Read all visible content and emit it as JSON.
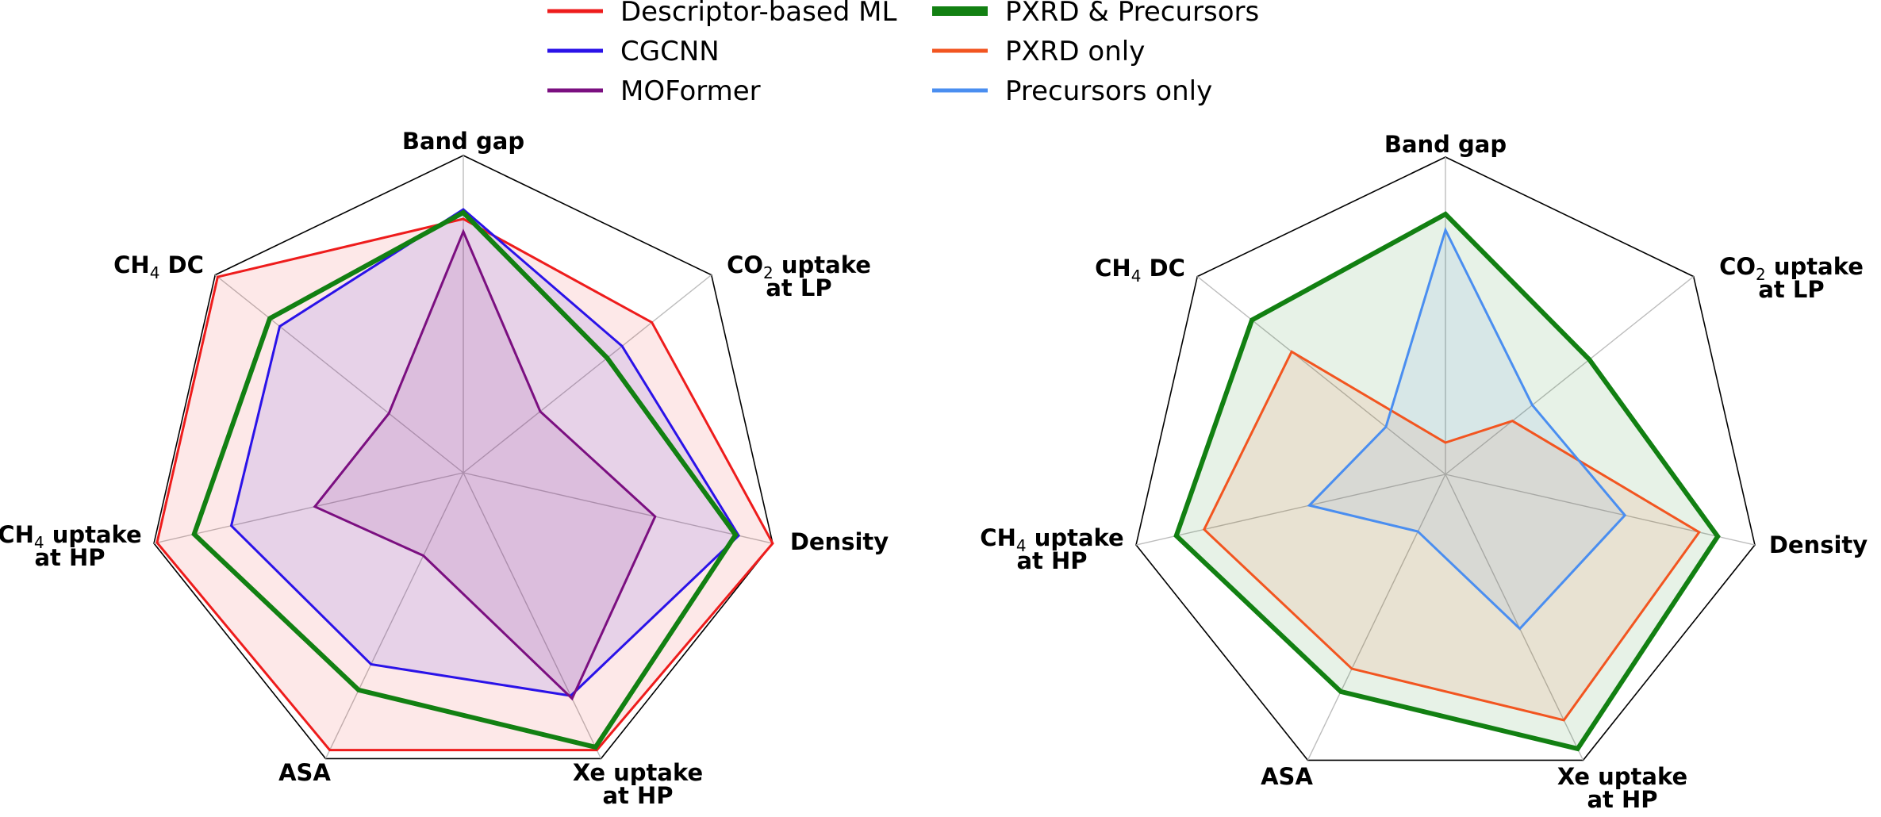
{
  "chart_data": [
    {
      "type": "radar",
      "categories": [
        {
          "main": "Band gap",
          "sub": "",
          "second": ""
        },
        {
          "main": "CO",
          "sub": "2",
          "rest": " uptake",
          "second": "at LP"
        },
        {
          "main": "Density",
          "sub": "",
          "second": ""
        },
        {
          "main": "Xe uptake",
          "sub": "",
          "second": "at HP"
        },
        {
          "main": "ASA",
          "sub": "",
          "second": ""
        },
        {
          "main": "CH",
          "sub": "4",
          "rest": " uptake",
          "second": "at HP"
        },
        {
          "main": "CH",
          "sub": "4",
          "rest": " DC",
          "second": ""
        }
      ],
      "range": [
        0,
        1
      ],
      "series": [
        {
          "name": "Descriptor-based ML",
          "color": "#ee1c1c",
          "fill": true,
          "values": [
            0.8,
            0.76,
            1.0,
            0.97,
            0.97,
            0.99,
            0.99
          ]
        },
        {
          "name": "CGCNN",
          "color": "#2a12e8",
          "fill": true,
          "values": [
            0.83,
            0.64,
            0.89,
            0.78,
            0.67,
            0.75,
            0.74
          ]
        },
        {
          "name": "MOFormer",
          "color": "#7b0f80",
          "fill": true,
          "values": [
            0.76,
            0.31,
            0.62,
            0.79,
            0.29,
            0.48,
            0.3
          ]
        },
        {
          "name": "PXRD & Precursors",
          "color": "#128012",
          "fill": false,
          "thick": true,
          "values": [
            0.82,
            0.58,
            0.88,
            0.96,
            0.76,
            0.87,
            0.78
          ]
        }
      ]
    },
    {
      "type": "radar",
      "categories": [
        {
          "main": "Band gap",
          "sub": "",
          "second": ""
        },
        {
          "main": "CO",
          "sub": "2",
          "rest": " uptake",
          "second": "at LP"
        },
        {
          "main": "Density",
          "sub": "",
          "second": ""
        },
        {
          "main": "Xe uptake",
          "sub": "",
          "second": "at HP"
        },
        {
          "main": "ASA",
          "sub": "",
          "second": ""
        },
        {
          "main": "CH",
          "sub": "4",
          "rest": " uptake",
          "second": "at HP"
        },
        {
          "main": "CH",
          "sub": "4",
          "rest": " DC",
          "second": ""
        }
      ],
      "range": [
        0,
        1
      ],
      "series": [
        {
          "name": "PXRD & Precursors",
          "color": "#128012",
          "fill": true,
          "thick": true,
          "values": [
            0.82,
            0.58,
            0.88,
            0.96,
            0.76,
            0.87,
            0.78
          ]
        },
        {
          "name": "PXRD only",
          "color": "#f25520",
          "fill": true,
          "values": [
            0.1,
            0.27,
            0.82,
            0.86,
            0.68,
            0.78,
            0.62
          ]
        },
        {
          "name": "Precursors only",
          "color": "#4a8ef0",
          "fill": true,
          "values": [
            0.77,
            0.35,
            0.58,
            0.54,
            0.2,
            0.44,
            0.24
          ]
        }
      ]
    }
  ],
  "legend": {
    "column_1": [
      {
        "name": "Descriptor-based ML",
        "color": "#ee1c1c"
      },
      {
        "name": "CGCNN",
        "color": "#2a12e8"
      },
      {
        "name": "MOFormer",
        "color": "#7b0f80"
      }
    ],
    "column_2": [
      {
        "name": "PXRD & Precursors",
        "color": "#128012",
        "thick": true
      },
      {
        "name": "PXRD only",
        "color": "#f25520"
      },
      {
        "name": "Precursors only",
        "color": "#4a8ef0"
      }
    ]
  }
}
